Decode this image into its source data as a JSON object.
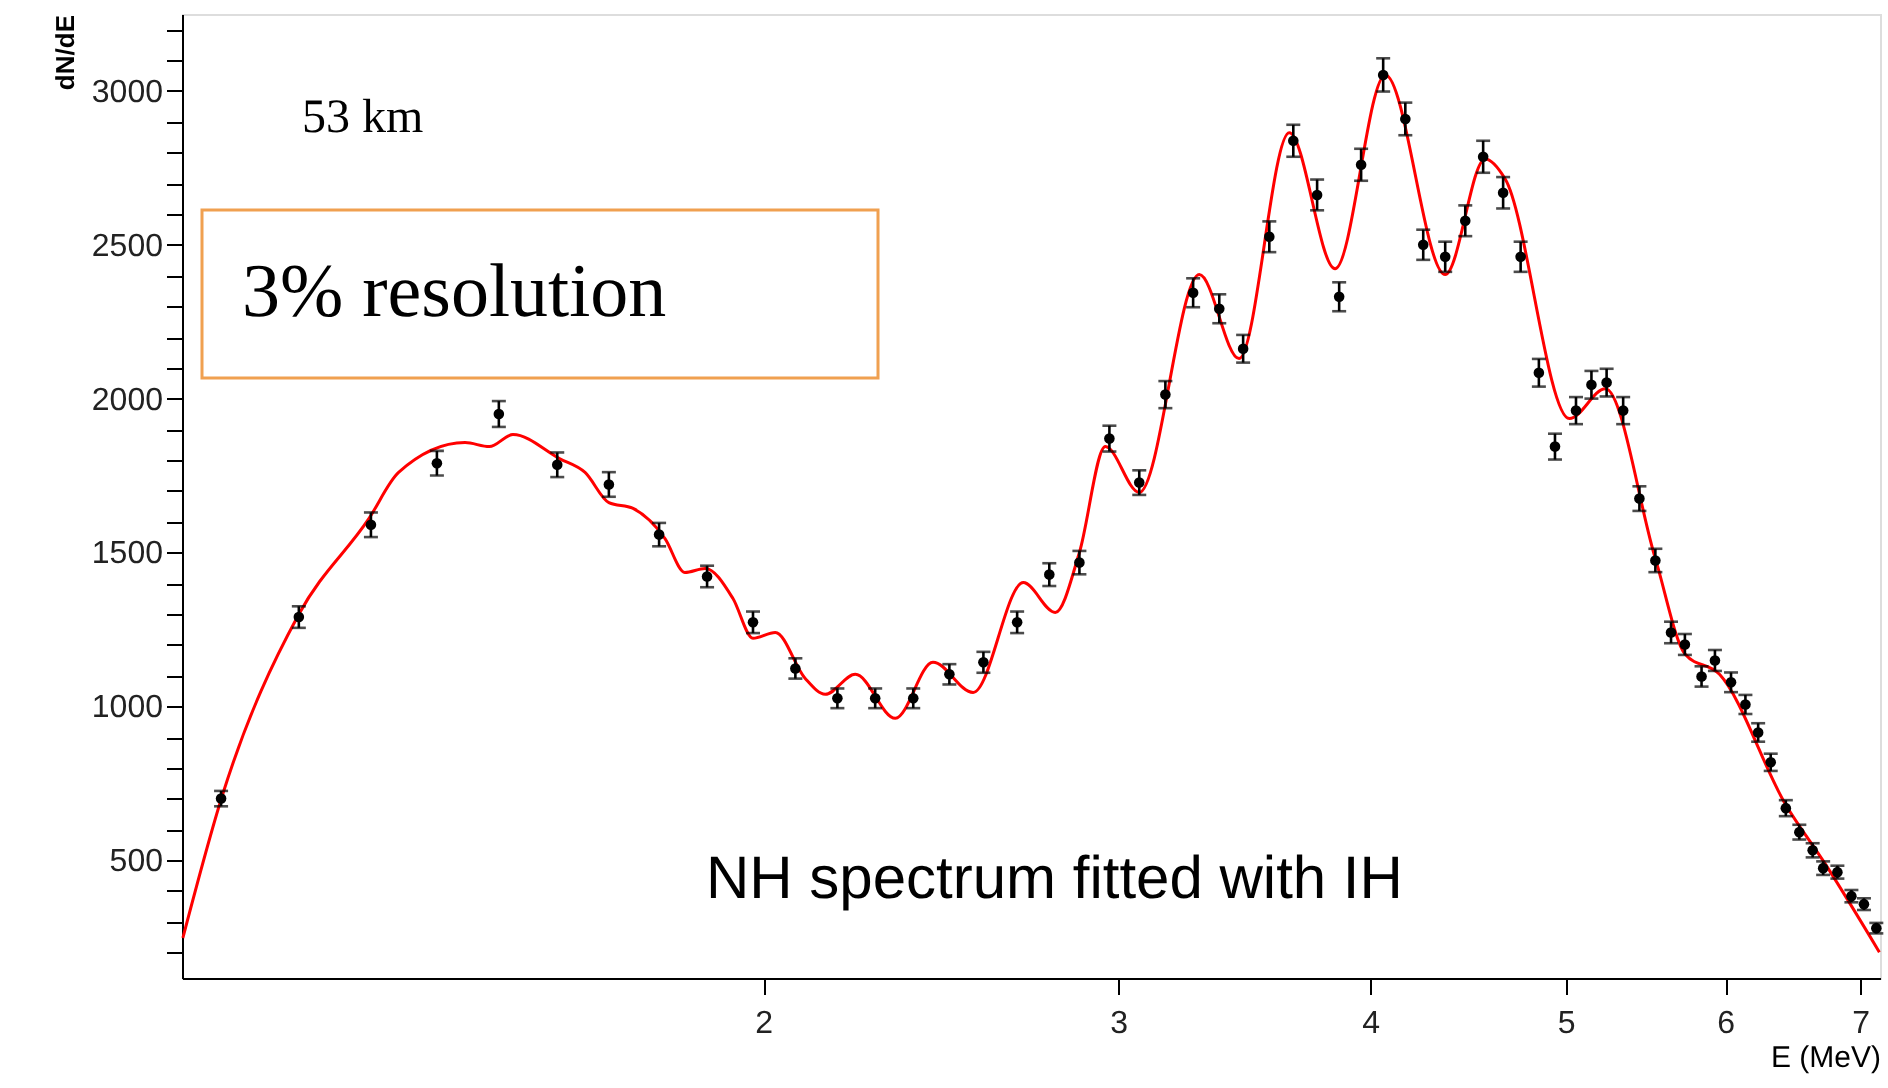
{
  "chart_data": {
    "type": "scatter",
    "xlabel": "E (MeV)",
    "ylabel": "dN/dE",
    "log": "x",
    "xlim": [
      1.03,
      7.16
    ],
    "ylim": [
      117,
      3250
    ],
    "xticks": [
      2,
      3,
      4,
      5,
      6,
      7
    ],
    "yticks": [
      {
        "value": 200,
        "label": null
      },
      {
        "value": 300,
        "label": null
      },
      {
        "value": 400,
        "label": null
      },
      500,
      {
        "value": 600,
        "label": null
      },
      {
        "value": 700,
        "label": null
      },
      {
        "value": 800,
        "label": null
      },
      {
        "value": 900,
        "label": null
      },
      1000,
      {
        "value": 1100,
        "label": null
      },
      {
        "value": 1200,
        "label": null
      },
      {
        "value": 1300,
        "label": null
      },
      {
        "value": 1400,
        "label": null
      },
      1500,
      {
        "value": 1600,
        "label": null
      },
      {
        "value": 1700,
        "label": null
      },
      {
        "value": 1800,
        "label": null
      },
      {
        "value": 1900,
        "label": null
      },
      2000,
      {
        "value": 2100,
        "label": null
      },
      {
        "value": 2200,
        "label": null
      },
      {
        "value": 2300,
        "label": null
      },
      {
        "value": 2400,
        "label": null
      },
      2500,
      {
        "value": 2600,
        "label": null
      },
      {
        "value": 2700,
        "label": null
      },
      {
        "value": 2800,
        "label": null
      },
      {
        "value": 2900,
        "label": null
      },
      3000,
      {
        "value": 3100,
        "label": null
      },
      {
        "value": 3200,
        "label": null
      }
    ],
    "annotations": [
      "53 km",
      "3% resolution",
      "NH spectrum fitted with IH"
    ],
    "series": [
      {
        "type": "line",
        "color": "#ff0000",
        "line_style": "solid",
        "marker": "none",
        "x": [
          1.031,
          1.079,
          1.177,
          1.275,
          1.319,
          1.423,
          1.463,
          1.503,
          1.585,
          1.632,
          1.677,
          1.724,
          1.788,
          1.829,
          1.872,
          1.932,
          1.977,
          2.028,
          2.098,
          2.147,
          2.222,
          2.326,
          2.428,
          2.542,
          2.692,
          2.792,
          2.87,
          2.956,
          3.073,
          3.291,
          3.444,
          3.647,
          3.843,
          4.07,
          4.358,
          4.561,
          4.667,
          5.022,
          5.233,
          5.54,
          5.732,
          5.961,
          6.427,
          6.727,
          7.155
        ],
        "values": [
          247,
          714,
          1299,
          1610,
          1760,
          1857,
          1844,
          1883,
          1805,
          1760,
          1662,
          1643,
          1545,
          1435,
          1448,
          1351,
          1221,
          1240,
          1091,
          1039,
          1104,
          961,
          1143,
          1045,
          1402,
          1305,
          1500,
          1844,
          1695,
          2403,
          2130,
          2864,
          2422,
          3052,
          2403,
          2779,
          2714,
          1935,
          2032,
          1480,
          1169,
          1104,
          682,
          487,
          201
        ]
      },
      {
        "type": "scatter",
        "color": "#000000",
        "marker": "circle",
        "x": [
          1.077,
          1.177,
          1.278,
          1.378,
          1.479,
          1.581,
          1.677,
          1.776,
          1.876,
          1.977,
          2.075,
          2.177,
          2.273,
          2.374,
          2.474,
          2.572,
          2.673,
          2.773,
          2.87,
          2.97,
          3.073,
          3.166,
          3.268,
          3.367,
          3.46,
          3.565,
          3.664,
          3.765,
          3.861,
          3.959,
          4.06,
          4.164,
          4.25,
          4.358,
          4.459,
          4.551,
          4.656,
          4.75,
          4.85,
          4.94,
          5.06,
          5.15,
          5.24,
          5.34,
          5.44,
          5.54,
          5.64,
          5.73,
          5.84,
          5.93,
          6.04,
          6.14,
          6.23,
          6.32,
          6.43,
          6.53,
          6.63,
          6.71,
          6.82,
          6.93,
          7.03,
          7.13
        ],
        "values": [
          700,
          1290,
          1590,
          1790,
          1950,
          1785,
          1721,
          1558,
          1422,
          1273,
          1123,
          1026,
          1026,
          1026,
          1104,
          1143,
          1273,
          1428,
          1467,
          1870,
          1727,
          2013,
          2344,
          2292,
          2162,
          2526,
          2838,
          2662,
          2331,
          2760,
          3052,
          2909,
          2500,
          2461,
          2578,
          2786,
          2669,
          2461,
          2084,
          1844,
          1961,
          2045,
          2052,
          1961,
          1675,
          1474,
          1240,
          1201,
          1097,
          1149,
          1078,
          1006,
          915,
          818,
          669,
          591,
          532,
          474,
          461,
          383,
          357,
          279
        ],
        "errors": [
          25,
          35,
          40,
          40,
          42,
          40,
          40,
          38,
          35,
          35,
          33,
          32,
          32,
          32,
          33,
          34,
          35,
          37,
          38,
          42,
          40,
          44,
          47,
          47,
          45,
          50,
          52,
          50,
          47,
          52,
          54,
          53,
          49,
          49,
          50,
          52,
          51,
          49,
          45,
          42,
          44,
          45,
          45,
          44,
          40,
          38,
          35,
          34,
          33,
          34,
          32,
          31,
          30,
          28,
          26,
          24,
          23,
          22,
          21,
          20,
          19,
          17
        ]
      }
    ]
  }
}
